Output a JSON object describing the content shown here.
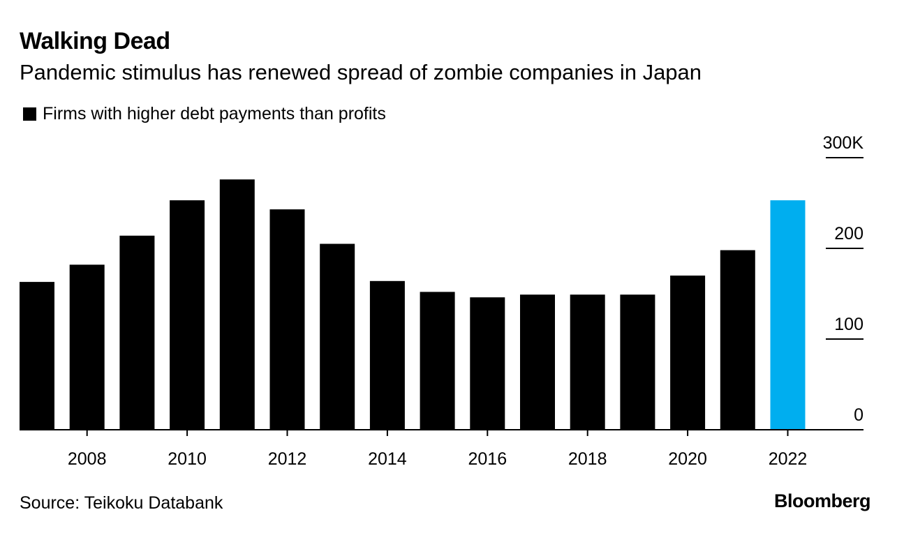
{
  "header": {
    "title": "Walking Dead",
    "subtitle": "Pandemic stimulus has renewed spread of zombie companies in Japan"
  },
  "footer": {
    "source": "Source: Teikoku Databank",
    "brand": "Bloomberg"
  },
  "colors": {
    "default_bar": "#000000",
    "highlight_bar": "#00aeef"
  },
  "chart_data": {
    "type": "bar",
    "title": "Walking Dead",
    "subtitle": "Pandemic stimulus has renewed spread of zombie companies in Japan",
    "legend": [
      {
        "label": "Firms with higher debt payments than profits",
        "color": "#000000"
      }
    ],
    "legend_position": "top-left",
    "categories": [
      "2007",
      "2008",
      "2009",
      "2010",
      "2011",
      "2012",
      "2013",
      "2014",
      "2015",
      "2016",
      "2017",
      "2018",
      "2019",
      "2020",
      "2021",
      "2022"
    ],
    "values": [
      163,
      182,
      214,
      253,
      276,
      243,
      205,
      164,
      152,
      146,
      149,
      149,
      149,
      170,
      198,
      253
    ],
    "highlight_categories": [
      "2022"
    ],
    "x_tick_labels": [
      "2008",
      "2010",
      "2012",
      "2014",
      "2016",
      "2018",
      "2020",
      "2022"
    ],
    "y_tick_values": [
      0,
      100,
      200,
      300
    ],
    "y_tick_labels": [
      "0",
      "100",
      "200",
      "300K"
    ],
    "ylim": [
      0,
      300
    ],
    "y_axis_position": "right",
    "xlabel": "",
    "ylabel": "",
    "grid": false
  }
}
